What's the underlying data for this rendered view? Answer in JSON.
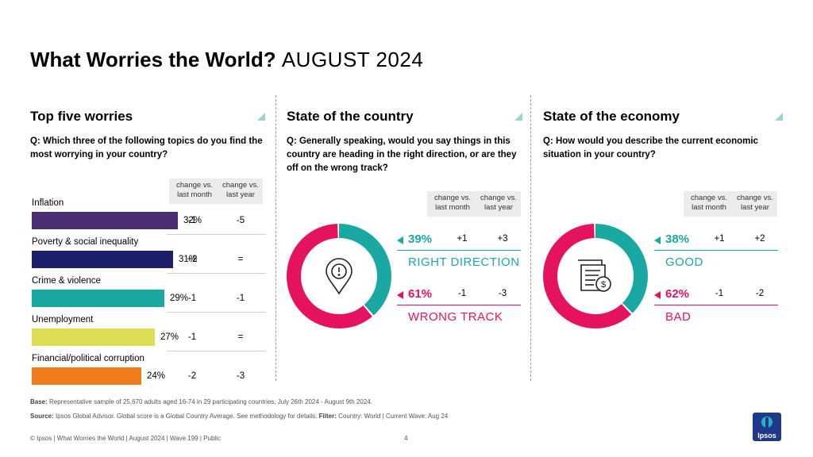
{
  "title": {
    "bold": "What Worries the World?",
    "rest": "AUGUST 2024"
  },
  "colors": {
    "teal": "#1aa9a2",
    "pink": "#e5135f",
    "accent_corner": "#9ed3cf"
  },
  "chart_data": [
    {
      "type": "bar",
      "title": "Top five worries",
      "question": "Q: Which three of the following topics do you find the most worrying in your country?",
      "column_headers": [
        "change vs. last month",
        "change vs. last year"
      ],
      "categories": [
        "Inflation",
        "Poverty & social inequality",
        "Crime & violence",
        "Unemployment",
        "Financial/political corruption"
      ],
      "values": [
        32,
        31,
        29,
        27,
        24
      ],
      "value_labels": [
        "32%",
        "31%",
        "29%",
        "27%",
        "24%"
      ],
      "change_month": [
        "-1",
        "+2",
        "-1",
        "-1",
        "-2"
      ],
      "change_year": [
        "-5",
        "=",
        "-1",
        "=",
        "-3"
      ],
      "bar_colors": [
        "#4b2d73",
        "#1b1f6b",
        "#1aa9a2",
        "#dddd55",
        "#f07c1e"
      ],
      "xlim": [
        0,
        40
      ]
    },
    {
      "type": "pie",
      "title": "State of the country",
      "question": "Q: Generally speaking, would you say things in this country are heading in the right direction, or are they off on the wrong track?",
      "column_headers": [
        "change vs. last month",
        "change vs. last year"
      ],
      "icon": "location-alert-icon",
      "slices": [
        {
          "label": "RIGHT DIRECTION",
          "value": 39,
          "pct": "39%",
          "change_month": "+1",
          "change_year": "+3",
          "color": "#1aa9a2"
        },
        {
          "label": "WRONG TRACK",
          "value": 61,
          "pct": "61%",
          "change_month": "-1",
          "change_year": "-3",
          "color": "#e5135f"
        }
      ]
    },
    {
      "type": "pie",
      "title": "State of the economy",
      "question": "Q: How would you describe the current economic situation in your country?",
      "column_headers": [
        "change vs. last month",
        "change vs. last year"
      ],
      "icon": "invoice-dollar-icon",
      "slices": [
        {
          "label": "GOOD",
          "value": 38,
          "pct": "38%",
          "change_month": "+1",
          "change_year": "+2",
          "color": "#1aa9a2"
        },
        {
          "label": "BAD",
          "value": 62,
          "pct": "62%",
          "change_month": "-1",
          "change_year": "-2",
          "color": "#e5135f"
        }
      ]
    }
  ],
  "footer": {
    "base_label": "Base:",
    "base_text": "Representative sample of 25,670 adults aged 16-74 in 29 participating countries, July 26th 2024 - August 9th 2024.",
    "source_label": "Source:",
    "source_text": "Ipsos Global Advisor. Global score is a Global Country Average. See methodology for details.",
    "filter_label": "Filter:",
    "filter_text": "Country: World | Current Wave: Aug 24",
    "copyright": "© Ipsos | What Worries the World | August 2024 | Wave 199 | Public",
    "page_number": "4",
    "logo_text": "Ipsos"
  }
}
